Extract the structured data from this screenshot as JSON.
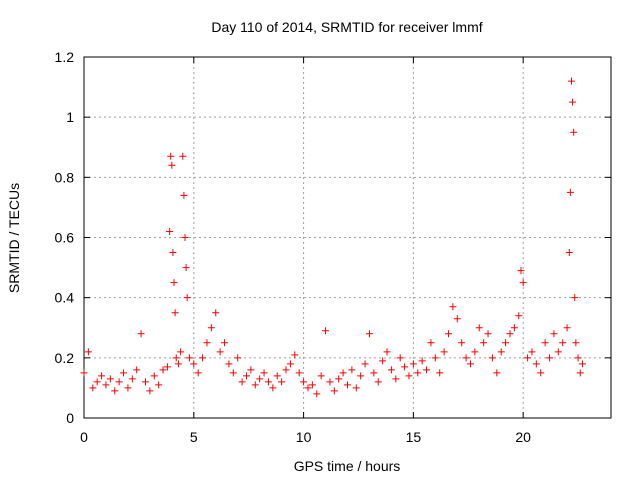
{
  "chart_data": {
    "type": "scatter",
    "title": "Day 110 of 2014, SRMTID for receiver lmmf",
    "xlabel": "GPS time / hours",
    "ylabel": "SRMTID / TECUs",
    "xlim": [
      0,
      24
    ],
    "ylim": [
      0,
      1.2
    ],
    "xticks": [
      0,
      5,
      10,
      15,
      20
    ],
    "xtick_labels": [
      "0",
      "5",
      "10",
      "15",
      "20"
    ],
    "yticks": [
      0,
      0.2,
      0.4,
      0.6,
      0.8,
      1.0,
      1.2
    ],
    "ytick_labels": [
      "0",
      "0.2",
      "0.4",
      "0.6",
      "0.8",
      "1",
      "1.2"
    ],
    "grid": true,
    "marker": "plus",
    "series": [
      {
        "name": "SRMTID",
        "color": "#ff0000",
        "x": [
          0.0,
          0.2,
          0.4,
          0.6,
          0.8,
          1.0,
          1.2,
          1.4,
          1.6,
          1.8,
          2.0,
          2.2,
          2.4,
          2.6,
          2.8,
          3.0,
          3.2,
          3.4,
          3.6,
          3.8,
          3.9,
          3.95,
          4.0,
          4.05,
          4.1,
          4.15,
          4.2,
          4.3,
          4.4,
          4.5,
          4.55,
          4.6,
          4.65,
          4.7,
          4.8,
          5.0,
          5.2,
          5.4,
          5.6,
          5.8,
          6.0,
          6.2,
          6.4,
          6.6,
          6.8,
          7.0,
          7.2,
          7.4,
          7.6,
          7.8,
          8.0,
          8.2,
          8.4,
          8.6,
          8.8,
          9.0,
          9.2,
          9.4,
          9.6,
          9.8,
          10.0,
          10.2,
          10.4,
          10.6,
          10.8,
          11.0,
          11.2,
          11.4,
          11.6,
          11.8,
          12.0,
          12.2,
          12.4,
          12.6,
          12.8,
          13.0,
          13.2,
          13.4,
          13.6,
          13.8,
          14.0,
          14.2,
          14.4,
          14.6,
          14.8,
          15.0,
          15.2,
          15.4,
          15.6,
          15.8,
          16.0,
          16.2,
          16.4,
          16.6,
          16.8,
          17.0,
          17.2,
          17.4,
          17.6,
          17.8,
          18.0,
          18.2,
          18.4,
          18.6,
          18.8,
          19.0,
          19.2,
          19.4,
          19.6,
          19.8,
          19.9,
          20.0,
          20.2,
          20.4,
          20.6,
          20.8,
          21.0,
          21.2,
          21.4,
          21.6,
          21.8,
          22.0,
          22.1,
          22.15,
          22.2,
          22.25,
          22.3,
          22.35,
          22.4,
          22.5,
          22.6,
          22.7
        ],
        "y": [
          0.15,
          0.22,
          0.1,
          0.12,
          0.14,
          0.11,
          0.13,
          0.09,
          0.12,
          0.15,
          0.1,
          0.13,
          0.16,
          0.28,
          0.12,
          0.09,
          0.14,
          0.11,
          0.16,
          0.17,
          0.62,
          0.87,
          0.84,
          0.55,
          0.45,
          0.35,
          0.2,
          0.18,
          0.22,
          0.87,
          0.74,
          0.6,
          0.5,
          0.4,
          0.2,
          0.18,
          0.15,
          0.2,
          0.25,
          0.3,
          0.35,
          0.22,
          0.25,
          0.18,
          0.15,
          0.2,
          0.12,
          0.14,
          0.16,
          0.11,
          0.13,
          0.15,
          0.12,
          0.1,
          0.14,
          0.12,
          0.16,
          0.18,
          0.21,
          0.15,
          0.12,
          0.1,
          0.11,
          0.08,
          0.14,
          0.29,
          0.12,
          0.09,
          0.13,
          0.15,
          0.11,
          0.16,
          0.1,
          0.14,
          0.18,
          0.28,
          0.15,
          0.12,
          0.19,
          0.22,
          0.16,
          0.13,
          0.2,
          0.17,
          0.14,
          0.18,
          0.15,
          0.19,
          0.16,
          0.25,
          0.2,
          0.15,
          0.22,
          0.28,
          0.37,
          0.33,
          0.25,
          0.2,
          0.18,
          0.22,
          0.3,
          0.25,
          0.28,
          0.2,
          0.15,
          0.22,
          0.25,
          0.28,
          0.3,
          0.34,
          0.49,
          0.45,
          0.2,
          0.22,
          0.18,
          0.15,
          0.25,
          0.2,
          0.28,
          0.22,
          0.25,
          0.3,
          0.55,
          0.75,
          1.12,
          1.05,
          0.95,
          0.4,
          0.25,
          0.2,
          0.15,
          0.18
        ]
      }
    ]
  }
}
